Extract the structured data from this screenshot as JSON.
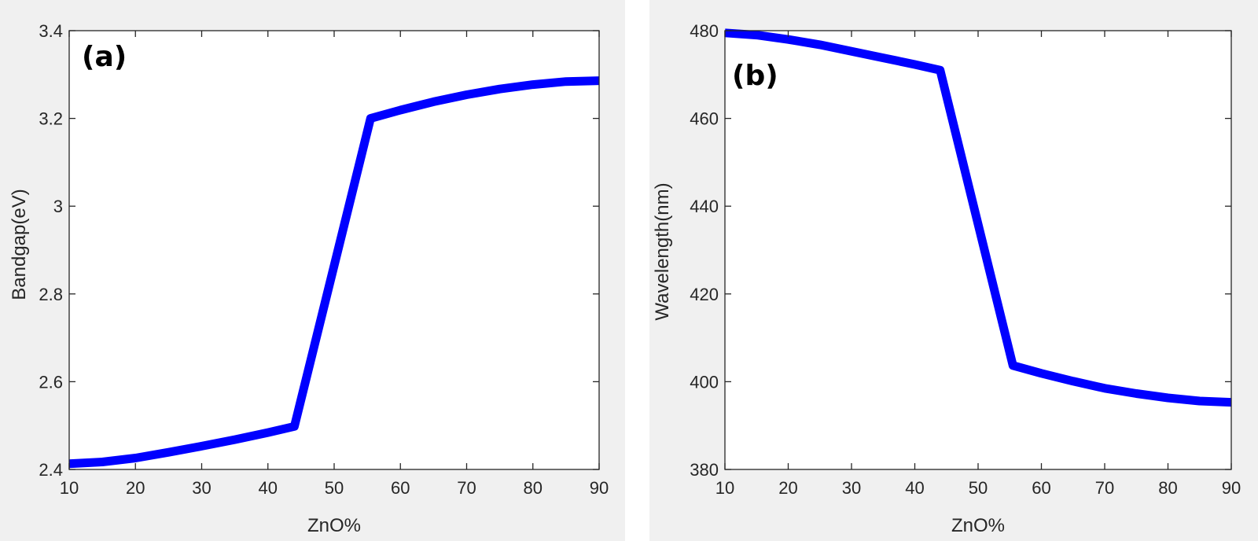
{
  "colors": {
    "figure_bg": "#f0f0f0",
    "axes_bg": "#ffffff",
    "axis_line": "#262626",
    "series": "#0000ff"
  },
  "chart_data": [
    {
      "type": "line",
      "panel_label": "(a)",
      "xlabel": "ZnO%",
      "ylabel": "Bandgap(eV)",
      "xlim": [
        10,
        90
      ],
      "ylim": [
        2.4,
        3.4
      ],
      "xticks": [
        10,
        20,
        30,
        40,
        50,
        60,
        70,
        80,
        90
      ],
      "yticks": [
        2.4,
        2.6,
        2.8,
        3,
        3.2,
        3.4
      ],
      "xtick_labels": [
        "10",
        "20",
        "30",
        "40",
        "50",
        "60",
        "70",
        "80",
        "90"
      ],
      "ytick_labels": [
        "2.4",
        "2.6",
        "2.8",
        "3",
        "3.2",
        "3.4"
      ],
      "grid": false,
      "series": [
        {
          "x": [
            10,
            15,
            20,
            25,
            30,
            35,
            40,
            44,
            55.5,
            60,
            65,
            70,
            75,
            80,
            85,
            90
          ],
          "y": [
            2.413,
            2.417,
            2.426,
            2.439,
            2.453,
            2.468,
            2.484,
            2.498,
            3.2,
            3.219,
            3.238,
            3.254,
            3.267,
            3.277,
            3.284,
            3.286
          ]
        }
      ]
    },
    {
      "type": "line",
      "panel_label": "(b)",
      "xlabel": "ZnO%",
      "ylabel": "Wavelength(nm)",
      "xlim": [
        10,
        90
      ],
      "ylim": [
        380,
        480
      ],
      "xticks": [
        10,
        20,
        30,
        40,
        50,
        60,
        70,
        80,
        90
      ],
      "yticks": [
        380,
        400,
        420,
        440,
        460,
        480
      ],
      "xtick_labels": [
        "10",
        "20",
        "30",
        "40",
        "50",
        "60",
        "70",
        "80",
        "90"
      ],
      "ytick_labels": [
        "380",
        "400",
        "420",
        "440",
        "460",
        "480"
      ],
      "grid": false,
      "series": [
        {
          "x": [
            10,
            15,
            20,
            25,
            30,
            35,
            40,
            44,
            55.5,
            60,
            65,
            70,
            75,
            80,
            85,
            90
          ],
          "y": [
            479.5,
            479.0,
            478.0,
            476.8,
            475.3,
            473.8,
            472.3,
            471.0,
            403.7,
            401.9,
            400.1,
            398.5,
            397.3,
            396.3,
            395.6,
            395.3
          ]
        }
      ]
    }
  ]
}
